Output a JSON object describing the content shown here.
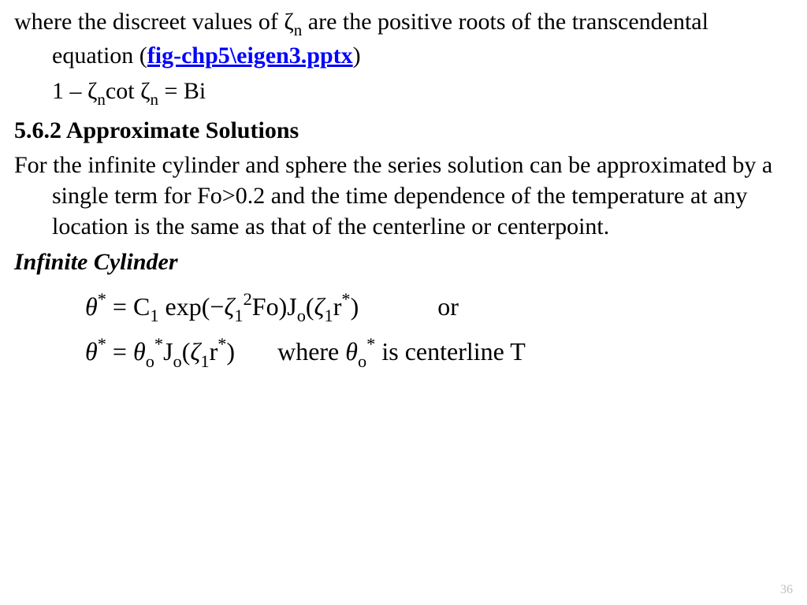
{
  "p1_a": "where the discreet values of ",
  "p1_b": " are the positive roots of the transcendental equation (",
  "zeta": "ζ",
  "sub_n": "n",
  "link_text": "fig-chp5\\eigen3.pptx",
  "p1_c": ")",
  "eq_trans_a": "1 – ",
  "eq_trans_cot": "cot ",
  "eq_trans_eq": " = Bi",
  "section": "5.6.2  Approximate Solutions",
  "p2": "For the infinite cylinder and sphere the series solution can be approximated by a single term for Fo>0.2 and the time dependence of the temperature at any location is the same as that of the centerline or centerpoint.",
  "subhead": "Infinite Cylinder",
  "eq1": {
    "theta": "θ",
    "sup_star": "*",
    "eq": " = ",
    "C": "C",
    "sub1": "1",
    "exp_a": " exp(",
    "minus": "−",
    "sup2": "2",
    "Fo": "Fo)",
    "J": "J",
    "sub_o": "o",
    "lp": "(",
    "r": "r",
    "rp": ")",
    "or": "or"
  },
  "eq2": {
    "where": "where ",
    "tail": " is centerline  T"
  },
  "slide_number": "36",
  "colors": {
    "text": "#000000",
    "link": "#0000ff",
    "slidenum": "#bfbfbf",
    "background": "#ffffff"
  },
  "fonts": {
    "body_pt": 30,
    "equation_pt": 32,
    "slidenum_pt": 16,
    "family": "Times New Roman"
  }
}
